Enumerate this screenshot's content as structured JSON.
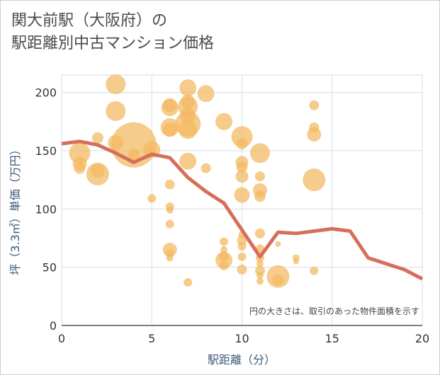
{
  "title": {
    "line1": "関大前駅（大阪府）の",
    "line2": "駅距離別中古マンション価格"
  },
  "colors": {
    "bubble": "#f2b860",
    "line": "#d66f5a",
    "grid": "#d4dde6",
    "axis_label": "#3c5a78"
  },
  "chart_data": {
    "type": "scatter",
    "xlabel": "駅距離（分）",
    "ylabel": "坪（3.3㎡）単価（万円）",
    "xlim": [
      0,
      20
    ],
    "ylim": [
      0,
      215
    ],
    "xticks": [
      0,
      5,
      10,
      15,
      20
    ],
    "yticks": [
      0,
      50,
      100,
      150,
      200
    ],
    "grid": true,
    "annotation": "円の大きさは、取引のあった物件面積を示す",
    "bubbles": [
      {
        "x": 1,
        "y": 148,
        "s": 15
      },
      {
        "x": 1,
        "y": 139,
        "s": 10
      },
      {
        "x": 1,
        "y": 135,
        "s": 8
      },
      {
        "x": 2,
        "y": 161,
        "s": 8
      },
      {
        "x": 2,
        "y": 133,
        "s": 10
      },
      {
        "x": 2,
        "y": 130,
        "s": 16
      },
      {
        "x": 3,
        "y": 207,
        "s": 14
      },
      {
        "x": 3,
        "y": 184,
        "s": 14
      },
      {
        "x": 3,
        "y": 157,
        "s": 11
      },
      {
        "x": 4,
        "y": 155,
        "s": 32
      },
      {
        "x": 4,
        "y": 147,
        "s": 8
      },
      {
        "x": 5,
        "y": 151,
        "s": 12
      },
      {
        "x": 5,
        "y": 109,
        "s": 6
      },
      {
        "x": 6,
        "y": 189,
        "s": 10
      },
      {
        "x": 6,
        "y": 187,
        "s": 12
      },
      {
        "x": 6,
        "y": 170,
        "s": 13
      },
      {
        "x": 6,
        "y": 168,
        "s": 10
      },
      {
        "x": 6,
        "y": 121,
        "s": 7
      },
      {
        "x": 6,
        "y": 102,
        "s": 6
      },
      {
        "x": 6,
        "y": 99,
        "s": 5
      },
      {
        "x": 6,
        "y": 87,
        "s": 6
      },
      {
        "x": 6,
        "y": 65,
        "s": 10
      },
      {
        "x": 6,
        "y": 62,
        "s": 6
      },
      {
        "x": 6,
        "y": 58,
        "s": 5
      },
      {
        "x": 7,
        "y": 204,
        "s": 12
      },
      {
        "x": 7,
        "y": 192,
        "s": 10
      },
      {
        "x": 7,
        "y": 188,
        "s": 14
      },
      {
        "x": 7,
        "y": 180,
        "s": 11
      },
      {
        "x": 7,
        "y": 173,
        "s": 18
      },
      {
        "x": 7,
        "y": 168,
        "s": 13
      },
      {
        "x": 7,
        "y": 141,
        "s": 12
      },
      {
        "x": 7,
        "y": 37,
        "s": 6
      },
      {
        "x": 8,
        "y": 199,
        "s": 12
      },
      {
        "x": 8,
        "y": 135,
        "s": 7
      },
      {
        "x": 9,
        "y": 175,
        "s": 12
      },
      {
        "x": 9,
        "y": 72,
        "s": 6
      },
      {
        "x": 9,
        "y": 65,
        "s": 5
      },
      {
        "x": 9,
        "y": 59,
        "s": 7
      },
      {
        "x": 9,
        "y": 56,
        "s": 12
      },
      {
        "x": 9,
        "y": 51,
        "s": 6
      },
      {
        "x": 10,
        "y": 162,
        "s": 15
      },
      {
        "x": 10,
        "y": 156,
        "s": 8
      },
      {
        "x": 10,
        "y": 140,
        "s": 9
      },
      {
        "x": 10,
        "y": 136,
        "s": 8
      },
      {
        "x": 10,
        "y": 128,
        "s": 9
      },
      {
        "x": 10,
        "y": 112,
        "s": 11
      },
      {
        "x": 10,
        "y": 78,
        "s": 5
      },
      {
        "x": 10,
        "y": 73,
        "s": 7
      },
      {
        "x": 10,
        "y": 68,
        "s": 6
      },
      {
        "x": 10,
        "y": 59,
        "s": 6
      },
      {
        "x": 10,
        "y": 48,
        "s": 7
      },
      {
        "x": 11,
        "y": 148,
        "s": 14
      },
      {
        "x": 11,
        "y": 128,
        "s": 7
      },
      {
        "x": 11,
        "y": 116,
        "s": 10
      },
      {
        "x": 11,
        "y": 111,
        "s": 8
      },
      {
        "x": 11,
        "y": 79,
        "s": 7
      },
      {
        "x": 11,
        "y": 66,
        "s": 6
      },
      {
        "x": 11,
        "y": 58,
        "s": 6
      },
      {
        "x": 11,
        "y": 53,
        "s": 5
      },
      {
        "x": 11,
        "y": 47,
        "s": 7
      },
      {
        "x": 11,
        "y": 43,
        "s": 5
      },
      {
        "x": 11,
        "y": 38,
        "s": 5
      },
      {
        "x": 12,
        "y": 42,
        "s": 16
      },
      {
        "x": 12,
        "y": 39,
        "s": 8
      },
      {
        "x": 12,
        "y": 70,
        "s": 4
      },
      {
        "x": 13,
        "y": 58,
        "s": 5
      },
      {
        "x": 13,
        "y": 55,
        "s": 4
      },
      {
        "x": 14,
        "y": 189,
        "s": 7
      },
      {
        "x": 14,
        "y": 170,
        "s": 7
      },
      {
        "x": 14,
        "y": 164,
        "s": 10
      },
      {
        "x": 14,
        "y": 125,
        "s": 16
      },
      {
        "x": 14,
        "y": 47,
        "s": 6
      }
    ],
    "series": [
      {
        "x": [
          0,
          1,
          2,
          3,
          4,
          5,
          6,
          7,
          8,
          9,
          10,
          11,
          12,
          13,
          14,
          15,
          16,
          17,
          18,
          19,
          20
        ],
        "values": [
          156,
          158,
          155,
          148,
          140,
          147,
          144,
          127,
          115,
          105,
          82,
          59,
          80,
          79,
          81,
          83,
          81,
          58,
          53,
          48,
          40
        ]
      }
    ]
  }
}
